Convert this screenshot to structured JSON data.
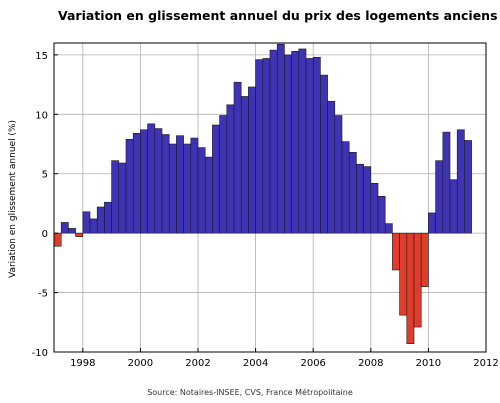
{
  "chart_data": {
    "type": "bar",
    "title": "Variation en glissement annuel du prix des logements anciens",
    "ylabel": "Variation en glissement annuel (%)",
    "xlabel": "",
    "source": "Source: Notaires-INSEE, CVS, France Métropolitaine",
    "xlim": [
      1997,
      2012
    ],
    "ylim": [
      -10,
      16
    ],
    "x_ticks": [
      {
        "value": 1998,
        "label": "1998"
      },
      {
        "value": 2000,
        "label": "2000"
      },
      {
        "value": 2002,
        "label": "2002"
      },
      {
        "value": 2004,
        "label": "2004"
      },
      {
        "value": 2006,
        "label": "2006"
      },
      {
        "value": 2008,
        "label": "2008"
      },
      {
        "value": 2010,
        "label": "2010"
      },
      {
        "value": 2012,
        "label": "2012"
      }
    ],
    "y_ticks": [
      {
        "value": 15,
        "label": "15"
      },
      {
        "value": 10,
        "label": "10"
      },
      {
        "value": 5,
        "label": "5"
      },
      {
        "value": 0,
        "label": "0"
      },
      {
        "value": -5,
        "label": "-5"
      },
      {
        "value": -10,
        "label": "-10"
      }
    ],
    "grid": true,
    "bar_width_years": 0.25,
    "colors": {
      "positive": "#3f33b5",
      "negative": "#e03c2c",
      "edge": "#1a1a1a"
    },
    "x": [
      1997.125,
      1997.375,
      1997.625,
      1997.875,
      1998.125,
      1998.375,
      1998.625,
      1998.875,
      1999.125,
      1999.375,
      1999.625,
      1999.875,
      2000.125,
      2000.375,
      2000.625,
      2000.875,
      2001.125,
      2001.375,
      2001.625,
      2001.875,
      2002.125,
      2002.375,
      2002.625,
      2002.875,
      2003.125,
      2003.375,
      2003.625,
      2003.875,
      2004.125,
      2004.375,
      2004.625,
      2004.875,
      2005.125,
      2005.375,
      2005.625,
      2005.875,
      2006.125,
      2006.375,
      2006.625,
      2006.875,
      2007.125,
      2007.375,
      2007.625,
      2007.875,
      2008.125,
      2008.375,
      2008.625,
      2008.875,
      2009.125,
      2009.375,
      2009.625,
      2009.875,
      2010.125,
      2010.375,
      2010.625,
      2010.875,
      2011.125,
      2011.375
    ],
    "values": [
      -1.1,
      0.9,
      0.4,
      -0.3,
      1.8,
      1.2,
      2.2,
      2.6,
      6.1,
      5.9,
      7.9,
      8.4,
      8.7,
      9.2,
      8.8,
      8.3,
      7.5,
      8.2,
      7.5,
      8.0,
      7.2,
      6.4,
      9.1,
      9.9,
      10.8,
      12.7,
      11.5,
      12.3,
      14.6,
      14.7,
      15.4,
      15.9,
      15.0,
      15.3,
      15.5,
      14.7,
      14.8,
      13.3,
      11.1,
      9.9,
      7.7,
      6.8,
      5.8,
      5.6,
      4.2,
      3.1,
      0.8,
      -3.1,
      -6.9,
      -9.3,
      -7.9,
      -4.5,
      1.7,
      6.1,
      8.5,
      4.5,
      8.7,
      7.8
    ]
  }
}
